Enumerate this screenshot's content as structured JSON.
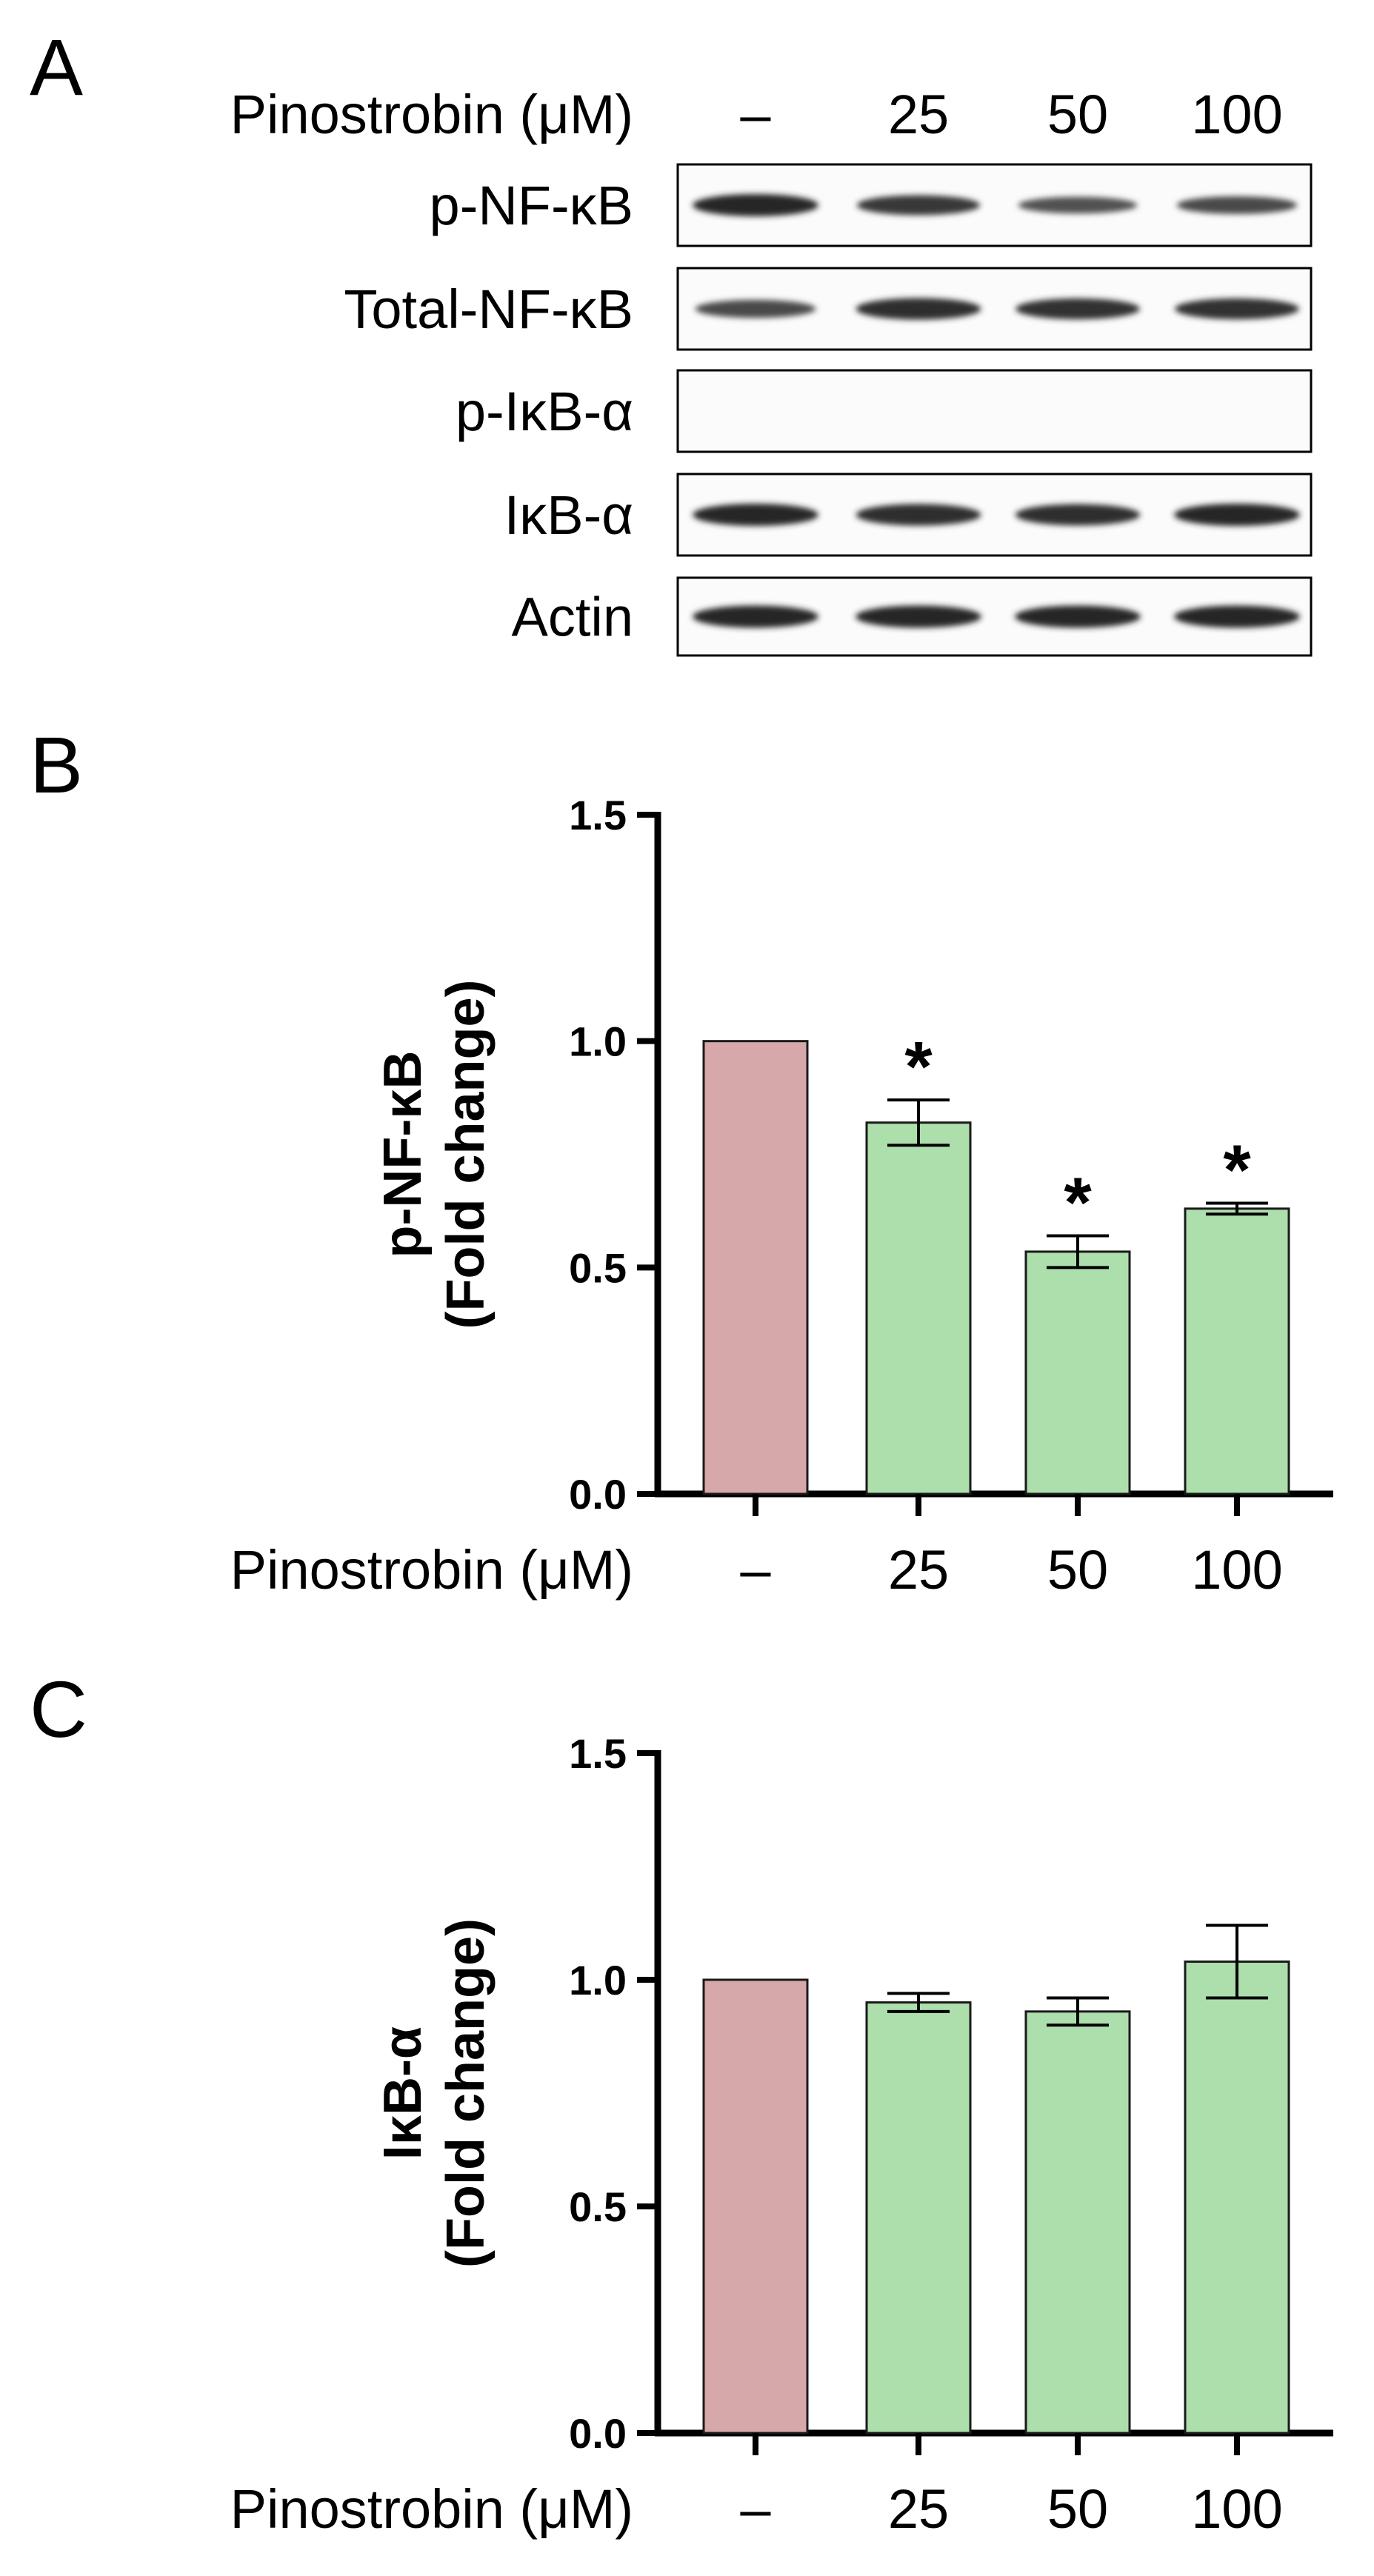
{
  "panels": {
    "a": {
      "letter": "A"
    },
    "b": {
      "letter": "B"
    },
    "c": {
      "letter": "C"
    }
  },
  "treatment_label": "Pinostrobin (μM)",
  "conditions": [
    "–",
    "25",
    "50",
    "100"
  ],
  "blot": {
    "rows": [
      {
        "label": "p-NF-κB",
        "intensity": [
          1.0,
          0.82,
          0.54,
          0.63
        ]
      },
      {
        "label": "Total-NF-κB",
        "intensity": [
          0.65,
          0.95,
          0.9,
          0.9
        ]
      },
      {
        "label": "p-IκB-α",
        "intensity": [
          0,
          0,
          0,
          0
        ]
      },
      {
        "label": "IκB-α",
        "intensity": [
          1.0,
          0.95,
          0.93,
          1.0
        ]
      },
      {
        "label": "Actin",
        "intensity": [
          1.0,
          1.0,
          1.0,
          1.0
        ]
      }
    ]
  },
  "colors": {
    "control_fill": "#d6a8aa",
    "treatment_fill": "#addfac",
    "bar_stroke": "#1a1a1a",
    "axis": "#000000"
  },
  "chart_data": [
    {
      "type": "bar",
      "categories": [
        "–",
        "25",
        "50",
        "100"
      ],
      "values": [
        1.0,
        0.82,
        0.535,
        0.63
      ],
      "errors": [
        0,
        0.05,
        0.035,
        0.012
      ],
      "significance": [
        "",
        "*",
        "*",
        "*"
      ],
      "ylabel": [
        "p-NF-κB",
        "(Fold change)"
      ],
      "xlabel": "Pinostrobin (μM)",
      "ylim": [
        0,
        1.5
      ],
      "yticks": [
        "0.0",
        "0.5",
        "1.0",
        "1.5"
      ],
      "grid": false
    },
    {
      "type": "bar",
      "categories": [
        "–",
        "25",
        "50",
        "100"
      ],
      "values": [
        1.0,
        0.95,
        0.93,
        1.04
      ],
      "errors": [
        0,
        0.02,
        0.03,
        0.08
      ],
      "significance": [
        "",
        "",
        "",
        ""
      ],
      "ylabel": [
        "IκB-α",
        "(Fold change)"
      ],
      "xlabel": "Pinostrobin (μM)",
      "ylim": [
        0,
        1.5
      ],
      "yticks": [
        "0.0",
        "0.5",
        "1.0",
        "1.5"
      ],
      "grid": false
    }
  ]
}
